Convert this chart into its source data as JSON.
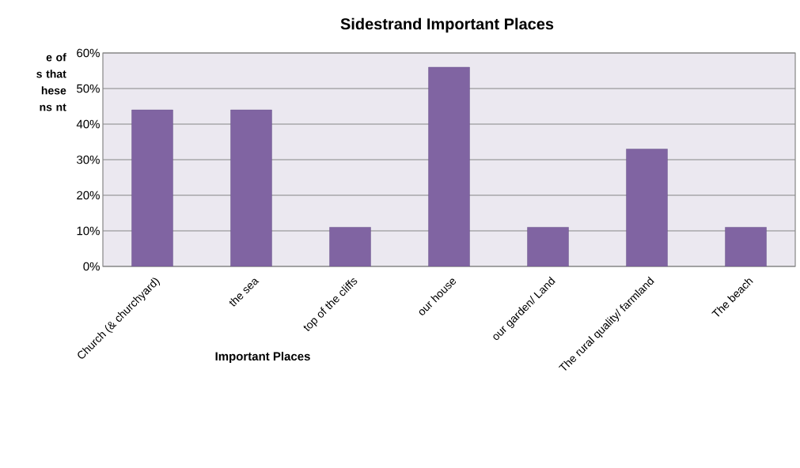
{
  "chart_data": {
    "type": "bar",
    "title": "Sidestrand Important Places",
    "xlabel": "Important Places",
    "ylabel": "e of s that hese ns nt",
    "categories": [
      "Church (& churchyard)",
      "the sea",
      "top of the cliffs",
      "our house",
      "our garden/ Land",
      "The rural quality/ farmland",
      "The beach"
    ],
    "values": [
      44,
      44,
      11,
      56,
      11,
      33,
      11
    ],
    "color": "#8064a2",
    "ylim": [
      0,
      60
    ],
    "yticks": [
      {
        "value": 0,
        "label": "0%"
      },
      {
        "value": 10,
        "label": "10%"
      },
      {
        "value": 20,
        "label": "20%"
      },
      {
        "value": 30,
        "label": "30%"
      },
      {
        "value": 40,
        "label": "40%"
      },
      {
        "value": 50,
        "label": "50%"
      },
      {
        "value": 60,
        "label": "60%"
      }
    ],
    "grid": "y",
    "legend": false
  }
}
